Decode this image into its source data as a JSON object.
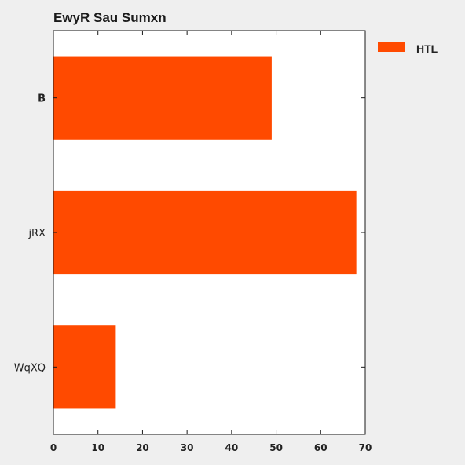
{
  "chart_data": {
    "type": "bar",
    "orientation": "horizontal",
    "title": "EwyR Sau Sumxn",
    "xlabel": "",
    "ylabel": "",
    "categories": [
      "B",
      "jRX",
      "WqXQ"
    ],
    "category_label_bold": [
      true,
      false,
      false
    ],
    "series": [
      {
        "name": "HTL",
        "values": [
          49,
          68,
          14
        ],
        "color": "#ff4a00"
      }
    ],
    "xlim": [
      0,
      70
    ],
    "x_ticks": [
      0,
      10,
      20,
      30,
      40,
      50,
      60,
      70
    ],
    "grid": false,
    "legend_position": "outside-right-top"
  }
}
